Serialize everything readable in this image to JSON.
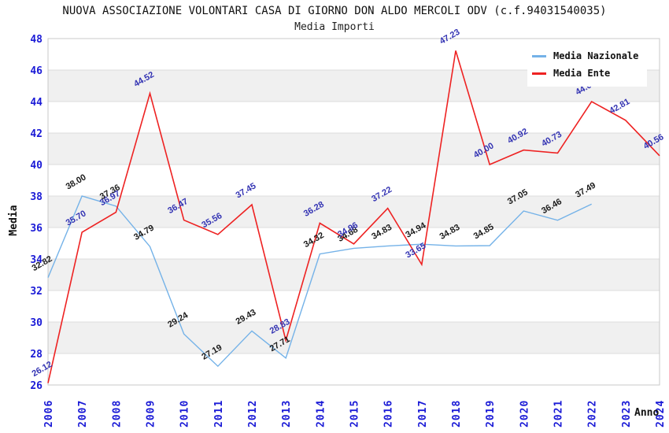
{
  "title": "NUOVA ASSOCIAZIONE VOLONTARI CASA DI GIORNO DON ALDO MERCOLI ODV (c.f.94031540035)",
  "subtitle": "Media Importi",
  "axes": {
    "y_title": "Media",
    "x_title": "Anno"
  },
  "chart_data": {
    "type": "line",
    "title": "NUOVA ASSOCIAZIONE VOLONTARI CASA DI GIORNO DON ALDO MERCOLI ODV (c.f.94031540035)",
    "subtitle": "Media Importi",
    "xlabel": "Anno",
    "ylabel": "Media",
    "ylim": [
      26,
      48
    ],
    "y_ticks": [
      26,
      28,
      30,
      32,
      34,
      36,
      38,
      40,
      42,
      44,
      46,
      48
    ],
    "x": [
      "2006",
      "2007",
      "2008",
      "2009",
      "2010",
      "2011",
      "2012",
      "2013",
      "2014",
      "2015",
      "2016",
      "2017",
      "2018",
      "2019",
      "2020",
      "2021",
      "2022",
      "2023",
      "2024"
    ],
    "series": [
      {
        "name": "Media Nazionale",
        "color": "#74b2e8",
        "label_color": "#1a1a1a",
        "values": [
          32.82,
          38.0,
          37.36,
          34.79,
          29.24,
          27.19,
          29.43,
          27.71,
          34.32,
          34.68,
          34.83,
          34.94,
          34.83,
          34.85,
          37.05,
          36.46,
          37.49,
          null,
          null
        ]
      },
      {
        "name": "Media Ente",
        "color": "#ee2222",
        "label_color": "#3333b3",
        "values": [
          26.12,
          35.7,
          36.97,
          44.52,
          36.47,
          35.56,
          37.45,
          28.83,
          36.28,
          34.96,
          37.22,
          33.65,
          47.23,
          40.0,
          40.92,
          40.73,
          44.0,
          42.81,
          40.56
        ]
      }
    ],
    "grid": true,
    "band_fill": "alternating",
    "legend_position": "top-right",
    "colors": {
      "tick_label": "#1a1ad6",
      "band": "#f0f0f0",
      "gridline": "#dcdcdc",
      "plot_border": "#c8c8c8"
    }
  }
}
